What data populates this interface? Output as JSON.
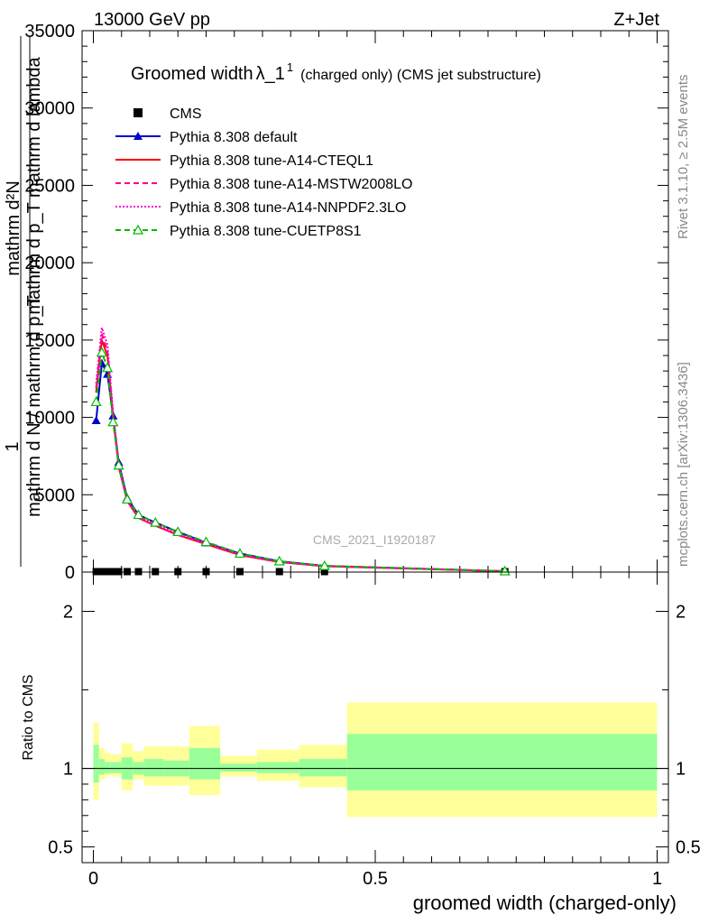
{
  "header": {
    "left": "13000 GeV pp",
    "right": "Z+Jet"
  },
  "chart_title": {
    "main": "Groomed width",
    "lambda": "λ_1",
    "sup": "1",
    "tail": "(charged only) (CMS jet substructure)"
  },
  "side_labels": {
    "rivet": "Rivet 3.1.10, ≥ 2.5M events",
    "mcplots": "mcplots.cern.ch [arXiv:1306.3436]"
  },
  "watermark": "CMS_2021_I1920187",
  "chart_data": [
    {
      "type": "line",
      "panel": "main",
      "xlim": [
        -0.02,
        1.02
      ],
      "ylim": [
        0,
        35000
      ],
      "xlabel": "groomed width (charged-only)",
      "ylabel_parts": {
        "one": "1",
        "top": "mathrm d²N",
        "top_sub": "mathrm d p_T mathrm d lambda",
        "bottom": "mathrm d N / mathrm d p_T"
      },
      "yticks": [
        {
          "v": 0,
          "label": "0"
        },
        {
          "v": 5000,
          "label": "5000"
        },
        {
          "v": 10000,
          "label": "10000"
        },
        {
          "v": 15000,
          "label": "15000"
        },
        {
          "v": 20000,
          "label": "20000"
        },
        {
          "v": 25000,
          "label": "25000"
        },
        {
          "v": 30000,
          "label": "30000"
        },
        {
          "v": 35000,
          "label": "35000"
        }
      ],
      "legend_position": "top-left",
      "series": [
        {
          "name": "CMS",
          "color": "#000000",
          "style": "data-squares",
          "x": [
            0.005,
            0.015,
            0.025,
            0.035,
            0.045,
            0.06,
            0.08,
            0.11,
            0.15,
            0.2,
            0.26,
            0.33,
            0.41,
            0.73
          ],
          "y": [
            30,
            30,
            30,
            30,
            30,
            30,
            30,
            30,
            30,
            30,
            30,
            30,
            30,
            30
          ]
        },
        {
          "name": "Pythia 8.308 default",
          "color": "#0000cc",
          "style": "solid-triangle",
          "x": [
            0.005,
            0.015,
            0.025,
            0.035,
            0.045,
            0.06,
            0.08,
            0.11,
            0.15,
            0.2,
            0.26,
            0.33,
            0.41,
            0.73
          ],
          "y": [
            9800,
            13500,
            12800,
            10100,
            7100,
            4800,
            3700,
            3200,
            2600,
            1900,
            1200,
            700,
            400,
            60
          ]
        },
        {
          "name": "Pythia 8.308 tune-A14-CTEQL1",
          "color": "#ff0000",
          "style": "solid",
          "x": [
            0.005,
            0.015,
            0.025,
            0.035,
            0.045,
            0.06,
            0.08,
            0.11,
            0.15,
            0.2,
            0.26,
            0.33,
            0.41,
            0.73
          ],
          "y": [
            11600,
            15000,
            14000,
            10000,
            6800,
            4600,
            3500,
            3000,
            2400,
            1800,
            1100,
            650,
            380,
            50
          ]
        },
        {
          "name": "Pythia 8.308 tune-A14-MSTW2008LO",
          "color": "#ff0080",
          "style": "dashed",
          "x": [
            0.005,
            0.015,
            0.025,
            0.035,
            0.045,
            0.06,
            0.08,
            0.11,
            0.15,
            0.2,
            0.26,
            0.33,
            0.41,
            0.73
          ],
          "y": [
            11900,
            15400,
            14300,
            10100,
            6900,
            4600,
            3500,
            3000,
            2400,
            1800,
            1100,
            650,
            380,
            50
          ]
        },
        {
          "name": "Pythia 8.308 tune-A14-NNPDF2.3LO",
          "color": "#ff00cc",
          "style": "dotted",
          "x": [
            0.005,
            0.015,
            0.025,
            0.035,
            0.045,
            0.06,
            0.08,
            0.11,
            0.15,
            0.2,
            0.26,
            0.33,
            0.41,
            0.73
          ],
          "y": [
            12200,
            15800,
            14700,
            10300,
            7000,
            4700,
            3600,
            3100,
            2500,
            1900,
            1150,
            680,
            390,
            55
          ]
        },
        {
          "name": "Pythia 8.308 tune-CUETP8S1",
          "color": "#00bb00",
          "style": "dashed-open-triangle",
          "x": [
            0.005,
            0.015,
            0.025,
            0.035,
            0.045,
            0.06,
            0.08,
            0.11,
            0.15,
            0.2,
            0.26,
            0.33,
            0.41,
            0.73
          ],
          "y": [
            11000,
            14200,
            13200,
            9700,
            6900,
            4700,
            3700,
            3200,
            2600,
            1950,
            1200,
            700,
            400,
            60
          ]
        }
      ]
    },
    {
      "type": "area",
      "panel": "ratio",
      "xlim": [
        -0.02,
        1.02
      ],
      "ylim": [
        0.4,
        2.25
      ],
      "ylabel": "Ratio to CMS",
      "yticks": [
        {
          "v": 0.5,
          "label": "0.5"
        },
        {
          "v": 1,
          "label": "1"
        },
        {
          "v": 2,
          "label": "2"
        }
      ],
      "xticks": [
        {
          "v": 0,
          "label": "0"
        },
        {
          "v": 0.5,
          "label": "0.5"
        },
        {
          "v": 1,
          "label": "1"
        }
      ],
      "bins": [
        0,
        0.01,
        0.02,
        0.03,
        0.05,
        0.07,
        0.09,
        0.125,
        0.17,
        0.225,
        0.29,
        0.365,
        0.45,
        1.0
      ],
      "band_total_color": "#ffff99",
      "band_stat_color": "#99ff99",
      "band_total": [
        [
          0.8,
          1.29
        ],
        [
          0.93,
          1.13
        ],
        [
          0.95,
          1.1
        ],
        [
          0.95,
          1.09
        ],
        [
          0.86,
          1.16
        ],
        [
          0.93,
          1.11
        ],
        [
          0.89,
          1.14
        ],
        [
          0.89,
          1.14
        ],
        [
          0.83,
          1.27
        ],
        [
          0.95,
          1.08
        ],
        [
          0.92,
          1.12
        ],
        [
          0.88,
          1.15
        ],
        [
          0.69,
          1.42
        ]
      ],
      "band_stat": [
        [
          0.91,
          1.15
        ],
        [
          0.96,
          1.06
        ],
        [
          0.97,
          1.04
        ],
        [
          0.97,
          1.04
        ],
        [
          0.93,
          1.07
        ],
        [
          0.96,
          1.04
        ],
        [
          0.95,
          1.06
        ],
        [
          0.95,
          1.05
        ],
        [
          0.93,
          1.13
        ],
        [
          0.98,
          1.03
        ],
        [
          0.97,
          1.04
        ],
        [
          0.95,
          1.06
        ],
        [
          0.86,
          1.22
        ]
      ]
    }
  ]
}
